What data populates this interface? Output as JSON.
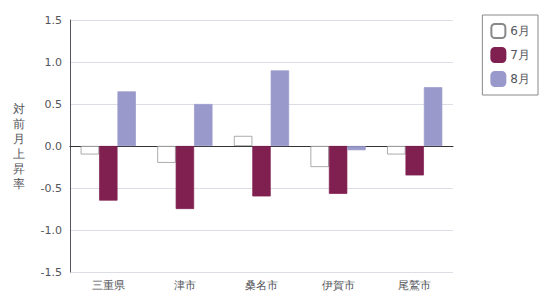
{
  "chart_data": {
    "type": "bar",
    "ylabel": "対前月上昇率",
    "categories": [
      "三重県",
      "津市",
      "桑名市",
      "伊賀市",
      "尾鷲市"
    ],
    "series": [
      {
        "name": "6月",
        "color": "#FFFFFF",
        "values": [
          -0.1,
          -0.2,
          0.12,
          -0.25,
          -0.1
        ]
      },
      {
        "name": "7月",
        "color": "#802050",
        "values": [
          -0.65,
          -0.75,
          -0.6,
          -0.57,
          -0.35
        ]
      },
      {
        "name": "8月",
        "color": "#9999CC",
        "values": [
          0.65,
          0.5,
          0.9,
          -0.05,
          0.7
        ]
      }
    ],
    "ylim": [
      -1.5,
      1.5
    ],
    "yticks": [
      -1.5,
      {
        "value": -1.0,
        "label": "-1.0"
      },
      -0.5,
      {
        "value": 0.0,
        "label": "0.0"
      },
      0.5,
      {
        "value": 1.0,
        "label": "1.0"
      },
      1.5
    ],
    "grid": true,
    "legend": "upper right"
  }
}
